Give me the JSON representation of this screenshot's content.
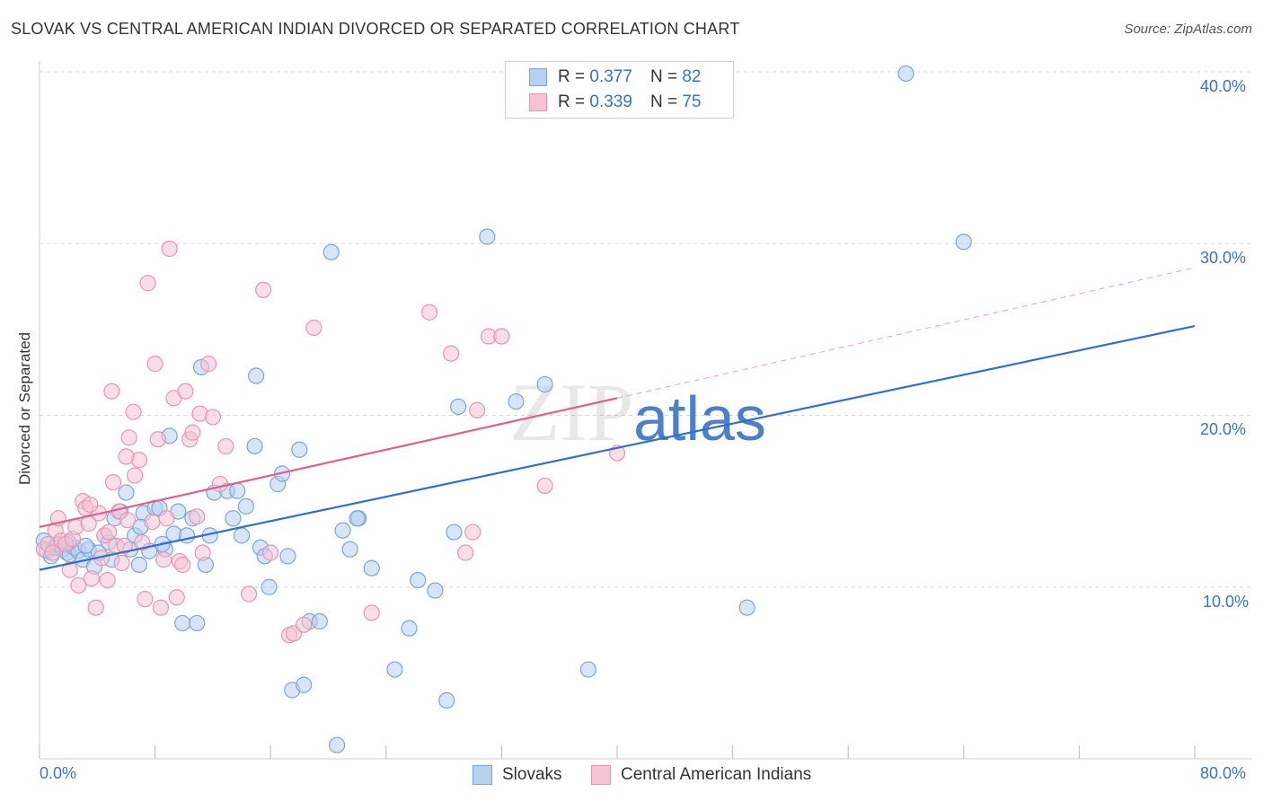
{
  "title": "SLOVAK VS CENTRAL AMERICAN INDIAN DIVORCED OR SEPARATED CORRELATION CHART",
  "source": "Source: ZipAtlas.com",
  "watermark": "ZIPatlas",
  "stats": [
    {
      "r_label": "R =",
      "r_value": "0.377",
      "n_label": "N =",
      "n_value": "82"
    },
    {
      "r_label": "R =",
      "r_value": "0.339",
      "n_label": "N =",
      "n_value": "75"
    }
  ],
  "legend": [
    "Slovaks",
    "Central American Indians"
  ],
  "colors": {
    "slovaks_fill": "#b8d0f0",
    "slovaks_stroke": "#7aa5dd",
    "slovaks_line": "#2f6fcf",
    "cai_fill": "#f6c3d4",
    "cai_stroke": "#e994b2",
    "cai_line": "#e0608a",
    "grid": "#d8d8d8",
    "tick_text": "#3a72c4"
  },
  "chart_data": {
    "type": "scatter",
    "title": "SLOVAK VS CENTRAL AMERICAN INDIAN DIVORCED OR SEPARATED CORRELATION CHART",
    "xlabel": "",
    "ylabel": "Divorced or Separated",
    "xlim": [
      0,
      80
    ],
    "ylim": [
      0,
      40
    ],
    "x_tick_labels": [
      "0.0%",
      "80.0%"
    ],
    "y_tick_labels": [
      "10.0%",
      "20.0%",
      "30.0%",
      "40.0%"
    ],
    "y_ticks": [
      10,
      20,
      30,
      40
    ],
    "grid": true,
    "legend_position": "bottom",
    "series": [
      {
        "name": "Slovaks",
        "trend": {
          "x": [
            0,
            80
          ],
          "y": [
            11.0,
            25.2
          ]
        },
        "points": [
          [
            0.3,
            12.7
          ],
          [
            0.5,
            12.1
          ],
          [
            0.8,
            11.8
          ],
          [
            1.0,
            12.3
          ],
          [
            1.3,
            12.5
          ],
          [
            1.6,
            12.2
          ],
          [
            1.9,
            12.0
          ],
          [
            2.1,
            11.9
          ],
          [
            2.4,
            12.3
          ],
          [
            2.7,
            12.1
          ],
          [
            3.0,
            11.6
          ],
          [
            3.4,
            12.2
          ],
          [
            3.8,
            11.2
          ],
          [
            4.1,
            12.0
          ],
          [
            4.5,
            13.0
          ],
          [
            4.8,
            12.6
          ],
          [
            5.2,
            14.0
          ],
          [
            5.6,
            14.4
          ],
          [
            6.0,
            15.5
          ],
          [
            6.3,
            12.2
          ],
          [
            6.6,
            13.0
          ],
          [
            6.9,
            11.3
          ],
          [
            7.2,
            14.3
          ],
          [
            7.6,
            12.1
          ],
          [
            8.0,
            14.6
          ],
          [
            8.3,
            14.6
          ],
          [
            8.7,
            12.2
          ],
          [
            9.0,
            18.8
          ],
          [
            9.3,
            13.1
          ],
          [
            9.6,
            14.4
          ],
          [
            9.9,
            7.9
          ],
          [
            10.2,
            13.0
          ],
          [
            10.6,
            14.0
          ],
          [
            10.9,
            7.9
          ],
          [
            11.2,
            22.8
          ],
          [
            11.5,
            11.3
          ],
          [
            11.8,
            13.0
          ],
          [
            12.1,
            15.5
          ],
          [
            13.0,
            15.6
          ],
          [
            13.4,
            14.0
          ],
          [
            14.0,
            13.0
          ],
          [
            14.3,
            14.7
          ],
          [
            14.9,
            18.2
          ],
          [
            15.3,
            12.3
          ],
          [
            15.6,
            11.8
          ],
          [
            15.9,
            10.0
          ],
          [
            16.5,
            16.0
          ],
          [
            16.8,
            16.6
          ],
          [
            17.2,
            11.8
          ],
          [
            17.5,
            4.0
          ],
          [
            18.0,
            18.0
          ],
          [
            18.3,
            4.3
          ],
          [
            18.7,
            8.0
          ],
          [
            19.4,
            8.0
          ],
          [
            20.2,
            29.5
          ],
          [
            20.6,
            0.8
          ],
          [
            21.0,
            13.3
          ],
          [
            21.5,
            12.2
          ],
          [
            22.1,
            14.0
          ],
          [
            23.0,
            11.1
          ],
          [
            24.6,
            5.2
          ],
          [
            25.6,
            7.6
          ],
          [
            26.2,
            10.4
          ],
          [
            27.4,
            9.8
          ],
          [
            28.2,
            3.4
          ],
          [
            28.7,
            13.2
          ],
          [
            29.0,
            20.5
          ],
          [
            31.0,
            30.4
          ],
          [
            33.0,
            20.8
          ],
          [
            35.0,
            21.8
          ],
          [
            38.0,
            5.2
          ],
          [
            49.0,
            8.8
          ],
          [
            60.0,
            39.9
          ],
          [
            64.0,
            30.1
          ],
          [
            22.0,
            14.0
          ],
          [
            13.7,
            15.6
          ],
          [
            5.0,
            11.6
          ],
          [
            3.2,
            12.4
          ],
          [
            7.0,
            13.5
          ],
          [
            2.0,
            12.6
          ],
          [
            15.0,
            22.3
          ],
          [
            8.5,
            12.5
          ]
        ]
      },
      {
        "name": "Central American Indians",
        "trend": {
          "x": [
            0,
            40
          ],
          "y": [
            13.5,
            21.0
          ]
        },
        "trend_extended": {
          "x": [
            40,
            80
          ],
          "y": [
            21.0,
            28.6
          ]
        },
        "points": [
          [
            0.3,
            12.2
          ],
          [
            0.6,
            12.5
          ],
          [
            0.9,
            12.0
          ],
          [
            1.1,
            13.3
          ],
          [
            1.3,
            14.0
          ],
          [
            1.5,
            12.7
          ],
          [
            1.8,
            12.5
          ],
          [
            2.1,
            11.0
          ],
          [
            2.3,
            12.8
          ],
          [
            2.5,
            13.5
          ],
          [
            2.7,
            10.1
          ],
          [
            3.0,
            15.0
          ],
          [
            3.2,
            14.6
          ],
          [
            3.4,
            13.7
          ],
          [
            3.6,
            10.5
          ],
          [
            3.9,
            8.8
          ],
          [
            4.1,
            14.3
          ],
          [
            4.3,
            11.7
          ],
          [
            4.5,
            13.0
          ],
          [
            4.7,
            10.4
          ],
          [
            5.0,
            21.4
          ],
          [
            5.1,
            16.1
          ],
          [
            5.3,
            12.4
          ],
          [
            5.5,
            14.4
          ],
          [
            5.7,
            11.4
          ],
          [
            5.9,
            12.4
          ],
          [
            6.1,
            13.9
          ],
          [
            6.2,
            18.7
          ],
          [
            6.5,
            20.2
          ],
          [
            6.6,
            16.5
          ],
          [
            6.9,
            17.4
          ],
          [
            7.1,
            12.6
          ],
          [
            7.3,
            9.3
          ],
          [
            7.5,
            27.7
          ],
          [
            7.8,
            13.8
          ],
          [
            8.0,
            23.0
          ],
          [
            8.2,
            18.6
          ],
          [
            8.4,
            8.8
          ],
          [
            8.6,
            11.6
          ],
          [
            8.8,
            14.0
          ],
          [
            9.0,
            29.7
          ],
          [
            9.3,
            21.0
          ],
          [
            9.5,
            9.4
          ],
          [
            9.7,
            11.5
          ],
          [
            9.9,
            11.3
          ],
          [
            10.1,
            21.4
          ],
          [
            10.4,
            18.6
          ],
          [
            10.6,
            19.0
          ],
          [
            10.9,
            14.1
          ],
          [
            11.1,
            20.1
          ],
          [
            11.3,
            12.0
          ],
          [
            11.7,
            23.0
          ],
          [
            12.0,
            19.9
          ],
          [
            12.9,
            18.2
          ],
          [
            14.5,
            9.6
          ],
          [
            15.5,
            27.3
          ],
          [
            16.0,
            12.0
          ],
          [
            17.3,
            7.2
          ],
          [
            17.6,
            7.3
          ],
          [
            18.3,
            7.8
          ],
          [
            19.0,
            25.1
          ],
          [
            23.0,
            8.5
          ],
          [
            27.0,
            26.0
          ],
          [
            28.5,
            23.6
          ],
          [
            29.5,
            12.0
          ],
          [
            30.0,
            13.2
          ],
          [
            30.3,
            20.3
          ],
          [
            31.1,
            24.6
          ],
          [
            32.0,
            24.6
          ],
          [
            35.0,
            15.9
          ],
          [
            40.0,
            17.8
          ],
          [
            12.5,
            16.0
          ],
          [
            6.0,
            17.6
          ],
          [
            3.5,
            14.8
          ],
          [
            4.8,
            13.2
          ]
        ]
      }
    ]
  }
}
